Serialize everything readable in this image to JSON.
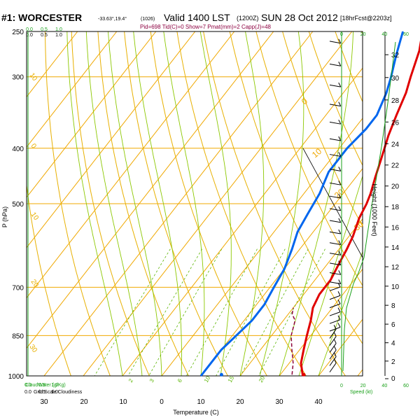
{
  "title": {
    "station": "#1: WORCESTER",
    "coords": "-33.63°,19.4°",
    "elev": "(1026)",
    "valid": "Valid 1400 LST",
    "utc": "(1200Z)",
    "date": "SUN 28 Oct 2012",
    "fcst": "[18hrFcst@2203z]"
  },
  "indices": "Pid=698 Tid(C)=0 Show=7 Pmat(mm)=2 Capp(J)=48",
  "footer": {
    "cloud_ticks": [
      "0.0",
      "0.5",
      "1.0"
    ],
    "cloud_label": "Grid Scale Cloudiness",
    "mix_ticks": [
      "0.0",
      "0.5",
      "1.0"
    ],
    "mix_label": "CloudWater (g/Kg)",
    "xlabel": "Temperature (C)",
    "speed_label": "Speed (kt)"
  },
  "colors": {
    "isotherm": "#f0a800",
    "dry_adiabat": "#e8b000",
    "moist_adiabat": "#8cc800",
    "mixing_ratio": "#5ab400",
    "temperature": "#e00000",
    "dewpoint": "#0066ee",
    "parcel": "#8c0038",
    "axis_green": "#19a019",
    "title_purple": "#8c0040"
  },
  "chart_data": {
    "type": "line",
    "title": "#1: WORCESTER",
    "xlabel": "Temperature (C)",
    "ylabel": "P (hPa)",
    "ylabel_right": "Height (1000 Feet)",
    "temperature_axis_ticks": [
      30,
      20,
      10,
      0,
      10,
      20,
      30,
      40
    ],
    "pressure_ticks": [
      250,
      300,
      400,
      500,
      700,
      850,
      1000
    ],
    "height_ticks": [
      0,
      2,
      4,
      6,
      8,
      10,
      12,
      14,
      16,
      18,
      20,
      22,
      24,
      26,
      28,
      30,
      32
    ],
    "speed_ticks": [
      0,
      20,
      40,
      60
    ],
    "cloudiness_top_ticks": [
      "0.0",
      "0.5",
      "1.0"
    ],
    "isotherm_labels": [
      0,
      10,
      20,
      30
    ],
    "dry_adiabat_labels": [
      10,
      0,
      10,
      20,
      30
    ],
    "mixing_ratio_labels": [
      2,
      3,
      6,
      10,
      15,
      20
    ],
    "series": [
      {
        "name": "Temperature",
        "points": [
          [
            -2,
            250
          ],
          [
            1,
            270
          ],
          [
            4,
            300
          ],
          [
            6,
            320
          ],
          [
            8,
            350
          ],
          [
            10,
            380
          ],
          [
            13,
            420
          ],
          [
            15,
            450
          ],
          [
            17,
            480
          ],
          [
            18,
            500
          ],
          [
            19,
            530
          ],
          [
            21,
            570
          ],
          [
            22,
            600
          ],
          [
            23,
            640
          ],
          [
            24,
            680
          ],
          [
            24,
            720
          ],
          [
            25,
            760
          ],
          [
            27,
            800
          ],
          [
            29,
            850
          ],
          [
            31,
            900
          ],
          [
            33,
            950
          ],
          [
            36,
            1000
          ]
        ]
      },
      {
        "name": "Dewpoint",
        "points": [
          [
            -7,
            250
          ],
          [
            -4,
            275
          ],
          [
            -1,
            300
          ],
          [
            1,
            320
          ],
          [
            3,
            350
          ],
          [
            3,
            370
          ],
          [
            2,
            400
          ],
          [
            2,
            440
          ],
          [
            4,
            480
          ],
          [
            5,
            520
          ],
          [
            6,
            560
          ],
          [
            8,
            600
          ],
          [
            10,
            650
          ],
          [
            11,
            700
          ],
          [
            12,
            750
          ],
          [
            12,
            800
          ],
          [
            11,
            850
          ],
          [
            10,
            900
          ],
          [
            10,
            950
          ],
          [
            10,
            1000
          ]
        ]
      },
      {
        "name": "Parcel",
        "points": [
          [
            33,
            995
          ],
          [
            31,
            950
          ],
          [
            28,
            900
          ],
          [
            25,
            850
          ],
          [
            23,
            800
          ],
          [
            21,
            780
          ],
          [
            20,
            760
          ]
        ]
      }
    ],
    "surface_points": {
      "temperature": 36,
      "dewpoint": 15,
      "pressure": 995
    }
  }
}
